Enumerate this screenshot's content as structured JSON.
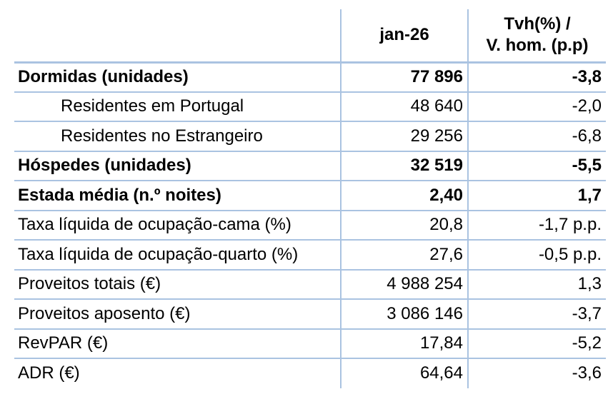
{
  "chart_data": {
    "type": "table",
    "title": "",
    "columns": [
      "",
      "jan-26",
      "Tvh(%) / V. hom. (p.p)"
    ],
    "rows": [
      [
        "Dormidas (unidades)",
        "77 896",
        "-3,8"
      ],
      [
        "Residentes em Portugal",
        "48 640",
        "-2,0"
      ],
      [
        "Residentes no Estrangeiro",
        "29 256",
        "-6,8"
      ],
      [
        "Hóspedes (unidades)",
        "32 519",
        "-5,5"
      ],
      [
        "Estada média (n.º noites)",
        "2,40",
        "1,7"
      ],
      [
        "Taxa líquida de ocupação-cama (%)",
        "20,8",
        "-1,7 p.p."
      ],
      [
        "Taxa líquida de ocupação-quarto (%)",
        "27,6",
        "-0,5 p.p."
      ],
      [
        "Proveitos totais (€)",
        "4 988 254",
        "1,3"
      ],
      [
        "Proveitos aposento (€)",
        "3 086 146",
        "-3,7"
      ],
      [
        "RevPAR (€)",
        "17,84",
        "-5,2"
      ],
      [
        "ADR (€)",
        "64,64",
        "-3,6"
      ]
    ],
    "number_format": "pt-PT (space thousands separator, comma decimal)",
    "grid": "horizontal light-blue rules between rows; vertical rules between columns; no outer frame",
    "legend_position": "none"
  },
  "table": {
    "header": {
      "col1": "",
      "col2": "jan-26",
      "col3_line1": "Tvh(%) /",
      "col3_line2": "V. hom. (p.p)"
    },
    "rows": [
      {
        "label": "Dormidas (unidades)",
        "value": "77 896",
        "tvh": "-3,8",
        "bold": true,
        "indent": false
      },
      {
        "label": "Residentes em Portugal",
        "value": "48 640",
        "tvh": "-2,0",
        "bold": false,
        "indent": true
      },
      {
        "label": "Residentes no Estrangeiro",
        "value": "29 256",
        "tvh": "-6,8",
        "bold": false,
        "indent": true
      },
      {
        "label": "Hóspedes (unidades)",
        "value": "32 519",
        "tvh": "-5,5",
        "bold": true,
        "indent": false
      },
      {
        "label": "Estada média (n.º noites)",
        "value": "2,40",
        "tvh": "1,7",
        "bold": true,
        "indent": false
      },
      {
        "label": "Taxa líquida de ocupação-cama (%)",
        "value": "20,8",
        "tvh": "-1,7 p.p.",
        "bold": false,
        "indent": false
      },
      {
        "label": "Taxa líquida de ocupação-quarto (%)",
        "value": "27,6",
        "tvh": "-0,5 p.p.",
        "bold": false,
        "indent": false
      },
      {
        "label": "Proveitos totais (€)",
        "value": "4 988 254",
        "tvh": "1,3",
        "bold": false,
        "indent": false
      },
      {
        "label": "Proveitos aposento (€)",
        "value": "3 086 146",
        "tvh": "-3,7",
        "bold": false,
        "indent": false
      },
      {
        "label": "RevPAR (€)",
        "value": "17,84",
        "tvh": "-5,2",
        "bold": false,
        "indent": false
      },
      {
        "label": "ADR (€)",
        "value": "64,64",
        "tvh": "-3,6",
        "bold": false,
        "indent": false
      }
    ],
    "colors": {
      "border": "#aac3e1",
      "text": "#000000",
      "background": "#ffffff"
    }
  }
}
